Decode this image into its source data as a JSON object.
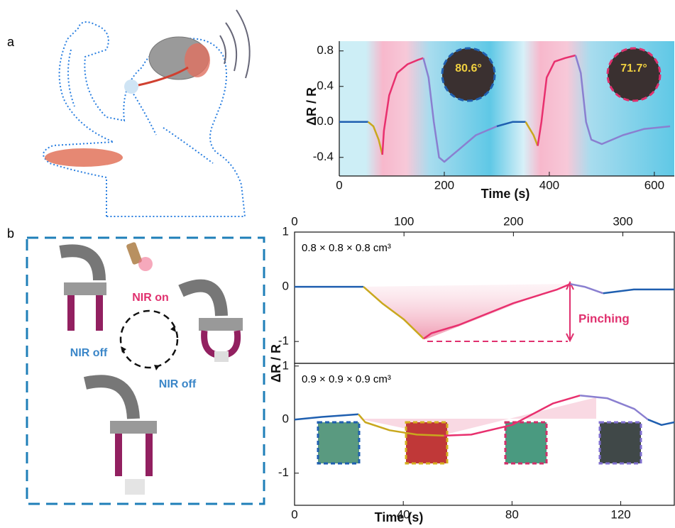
{
  "panels": {
    "a": "a",
    "b": "b"
  },
  "labels": {
    "nir_on": "NIR on",
    "nir_off_left": "NIR off",
    "nir_off_bottom": "NIR off"
  },
  "chart_data": [
    {
      "type": "line",
      "x_label": "Time (s)",
      "y_label": "ΔR / R",
      "annotations": [
        "80.6°",
        "71.7°"
      ],
      "xlim": [
        0,
        638
      ],
      "ylim": [
        -0.61,
        0.91
      ],
      "xticks": [
        0,
        200,
        400,
        600
      ],
      "yticks": [
        -0.4,
        {
          "value": 0,
          "label": "0.0"
        },
        0.4,
        0.8
      ],
      "series": [
        {
          "color": "#1f5fb0",
          "x": [
            0,
            20,
            40,
            55
          ],
          "values": [
            0,
            0,
            0,
            0
          ]
        },
        {
          "color": "#c9a81e",
          "x": [
            55,
            65,
            75,
            82
          ],
          "values": [
            0,
            -0.05,
            -0.2,
            -0.37
          ]
        },
        {
          "color": "#e8306e",
          "x": [
            82,
            85,
            95,
            110,
            130,
            150,
            160
          ],
          "values": [
            -0.37,
            -0.1,
            0.3,
            0.55,
            0.65,
            0.7,
            0.72
          ]
        },
        {
          "color": "#8a7fd0",
          "x": [
            160,
            170,
            180,
            190,
            200,
            230,
            260,
            300
          ],
          "values": [
            0.72,
            0.5,
            0,
            -0.4,
            -0.45,
            -0.3,
            -0.15,
            -0.05
          ]
        },
        {
          "color": "#1f5fb0",
          "x": [
            300,
            330,
            355
          ],
          "values": [
            -0.05,
            0,
            0
          ]
        },
        {
          "color": "#c9a81e",
          "x": [
            355,
            370,
            378
          ],
          "values": [
            0,
            -0.15,
            -0.27
          ]
        },
        {
          "color": "#e8306e",
          "x": [
            378,
            385,
            395,
            410,
            430,
            450
          ],
          "values": [
            -0.27,
            0,
            0.5,
            0.68,
            0.72,
            0.75
          ]
        },
        {
          "color": "#8a7fd0",
          "x": [
            450,
            460,
            470,
            480,
            500,
            540,
            580,
            630
          ],
          "values": [
            0.75,
            0.55,
            0,
            -0.2,
            -0.25,
            -0.15,
            -0.08,
            -0.05
          ]
        }
      ]
    },
    {
      "type": "line",
      "y_label": "ΔR / R",
      "annotations": [
        "0.8 × 0.8 × 0.8 cm³",
        "Pinching"
      ],
      "xlim": [
        0,
        347
      ],
      "ylim": [
        -1.4,
        1
      ],
      "xticks": [
        0,
        100,
        200,
        300
      ],
      "yticks": [
        -1,
        0,
        1
      ],
      "series": [
        {
          "color": "#1f5fb0",
          "x": [
            0,
            30,
            63
          ],
          "values": [
            0,
            0,
            0
          ]
        },
        {
          "color": "#c9a81e",
          "x": [
            63,
            80,
            100,
            118
          ],
          "values": [
            0,
            -0.3,
            -0.6,
            -0.95
          ]
        },
        {
          "color": "#e8306e",
          "x": [
            118,
            125,
            150,
            200,
            240,
            252
          ],
          "values": [
            -0.95,
            -0.85,
            -0.7,
            -0.3,
            -0.05,
            0.05
          ]
        },
        {
          "color": "#8a7fd0",
          "x": [
            252,
            265,
            282
          ],
          "values": [
            0.05,
            0,
            -0.12
          ]
        },
        {
          "color": "#1f5fb0",
          "x": [
            282,
            310,
            347
          ],
          "values": [
            -0.12,
            -0.05,
            -0.05
          ]
        }
      ]
    },
    {
      "type": "line",
      "x_label": "Time (s)",
      "annotations": [
        "0.9 × 0.9 × 0.9 cm³"
      ],
      "xlim": [
        0,
        139.7
      ],
      "ylim": [
        -1.6,
        1.05
      ],
      "xticks": [
        0,
        40,
        80,
        120
      ],
      "yticks": [
        -1,
        0,
        1
      ],
      "series": [
        {
          "color": "#1f5fb0",
          "x": [
            0,
            10,
            23.5
          ],
          "values": [
            0,
            0.05,
            0.1
          ]
        },
        {
          "color": "#c9a81e",
          "x": [
            23.5,
            26,
            35,
            45,
            55
          ],
          "values": [
            0.1,
            -0.05,
            -0.2,
            -0.28,
            -0.3
          ]
        },
        {
          "color": "#e8306e",
          "x": [
            55,
            65,
            80,
            95,
            105
          ],
          "values": [
            -0.3,
            -0.28,
            -0.1,
            0.3,
            0.45
          ]
        },
        {
          "color": "#8a7fd0",
          "x": [
            105,
            115,
            125,
            130
          ],
          "values": [
            0.45,
            0.4,
            0.2,
            0
          ]
        },
        {
          "color": "#1f5fb0",
          "x": [
            130,
            135,
            139.7
          ],
          "values": [
            0,
            -0.1,
            -0.05
          ]
        }
      ]
    }
  ]
}
